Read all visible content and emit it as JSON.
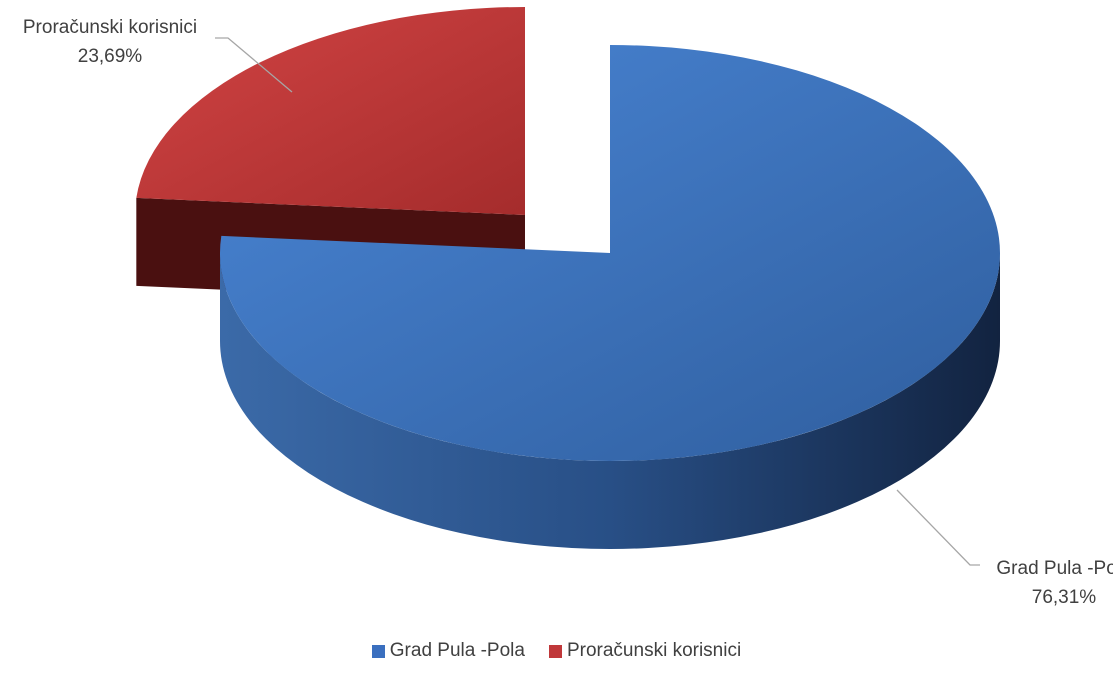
{
  "chart_data": {
    "type": "pie",
    "title": "",
    "categories": [
      "Grad Pula -Pola",
      "Proračunski korisnici"
    ],
    "values": [
      76.31,
      23.69
    ],
    "unit": "%",
    "data_labels": [
      "Grad Pula -Pola",
      "76,31%",
      "Proračunski korisnici",
      "23,69%"
    ],
    "colors": [
      "#3a6fbf",
      "#c0383a"
    ],
    "exploded": [
      false,
      true
    ],
    "style": "3d",
    "legend": {
      "position": "bottom",
      "entries": [
        "Grad Pula -Pola",
        "Proračunski korisnici"
      ]
    }
  }
}
